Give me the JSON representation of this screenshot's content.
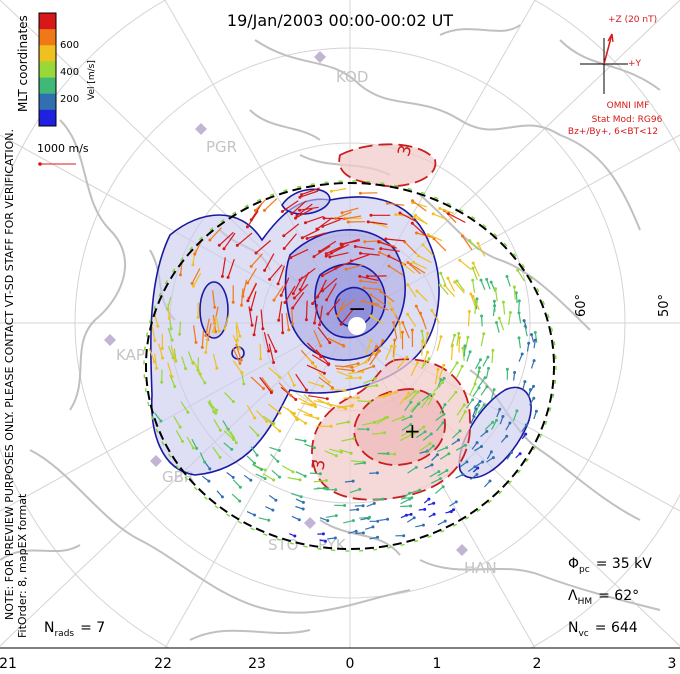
{
  "title": "19/Jan/2003 00:00-00:02 UT",
  "side_note": "NOTE: FOR PREVIEW PURPOSES ONLY. PLEASE CONTACT VT-SD STAFF FOR VERIFICATION.",
  "fit_info": "FitOrder: 8, mapEX format",
  "coord_label": "MLT coordinates",
  "colorbar": {
    "label": "Vel [m/s]",
    "ticks": [
      "600",
      "400",
      "200"
    ],
    "colors": [
      "#d81818",
      "#f07818",
      "#f0c020",
      "#98d838",
      "#40b878",
      "#3070b0",
      "#2020e0"
    ]
  },
  "vector_scale": "1000 m/s",
  "imf": {
    "z_label": "+Z (20 nT)",
    "y_label": "+Y",
    "source": "OMNI IMF",
    "model": "Stat Mod: RG96",
    "condition": "Bz+/By+, 6<BT<12"
  },
  "stations": [
    "KOD",
    "PGR",
    "KAP",
    "GBR",
    "STO",
    "PYK",
    "HAN"
  ],
  "lat_labels": [
    "60°",
    "50°"
  ],
  "potential_markers": [
    "−",
    "+"
  ],
  "contour_labels": [
    "3",
    "3"
  ],
  "stats": {
    "phi_label": "Φ",
    "phi_sub": "pc",
    "phi_value": "= 35 kV",
    "lambda_label": "Λ",
    "lambda_sub": "HM",
    "lambda_value": "= 62°",
    "nvc_label": "N",
    "nvc_sub": "vc",
    "nvc_value": "= 644",
    "nrads_label": "N",
    "nrads_sub": "rads",
    "nrads_value": "= 7"
  },
  "mlt_axis": [
    "21",
    "22",
    "23",
    "0",
    "1",
    "2",
    "3"
  ],
  "colors": {
    "negative_fill": "#c8c8ec",
    "negative_line": "#1a1aa0",
    "positive_fill": "#f2cccc",
    "positive_line": "#c81e1e",
    "coast": "#c0c0c0",
    "grid": "#d4d4d4"
  }
}
